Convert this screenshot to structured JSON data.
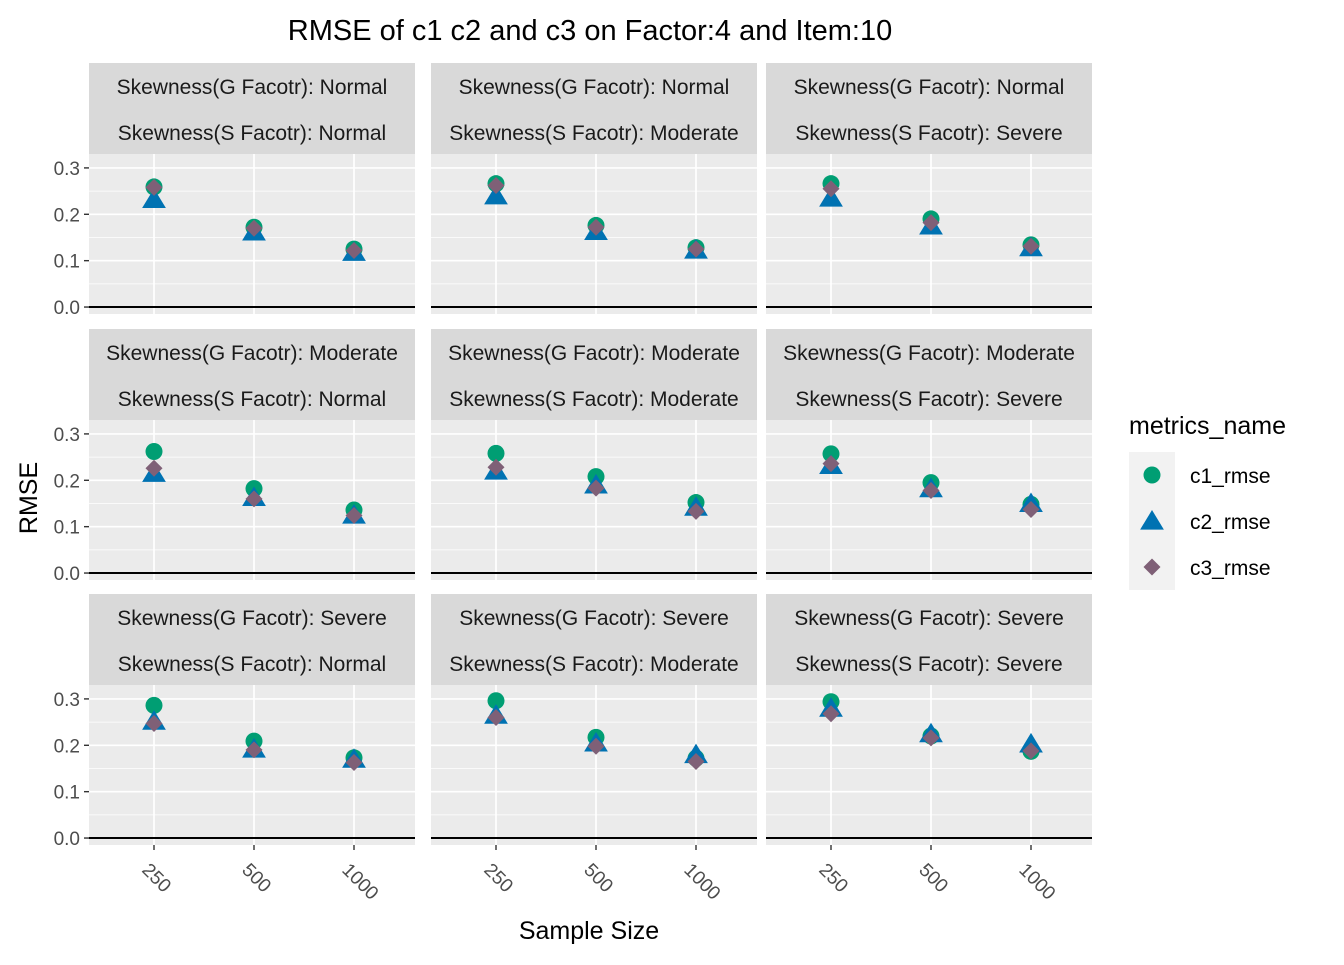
{
  "chart_data": {
    "type": "scatter",
    "title": "RMSE of c1 c2 and c3 on Factor:4 and Item:10",
    "xlabel": "Sample Size",
    "ylabel": "RMSE",
    "x_categories": [
      "250",
      "500",
      "1000"
    ],
    "y_ticks": [
      "0.0",
      "0.1",
      "0.2",
      "0.3"
    ],
    "ylim": [
      -0.015,
      0.33
    ],
    "grid": true,
    "legend": {
      "title": "metrics_name",
      "placement": "right",
      "entries": [
        {
          "name": "c1_rmse",
          "shape": "circle",
          "color": "#009E73"
        },
        {
          "name": "c2_rmse",
          "shape": "triangle",
          "color": "#0072B2"
        },
        {
          "name": "c3_rmse",
          "shape": "diamond",
          "color": "#7F6077"
        }
      ]
    },
    "panels": [
      {
        "strip_top": "Skewness(G Facotr): Normal",
        "strip_bottom": "Skewness(S Facotr): Normal",
        "series": [
          {
            "name": "c1_rmse",
            "values": [
              0.259,
              0.172,
              0.125
            ]
          },
          {
            "name": "c2_rmse",
            "values": [
              0.232,
              0.162,
              0.118
            ]
          },
          {
            "name": "c3_rmse",
            "values": [
              0.258,
              0.17,
              0.122
            ]
          }
        ]
      },
      {
        "strip_top": "Skewness(G Facotr): Normal",
        "strip_bottom": "Skewness(S Facotr): Moderate",
        "series": [
          {
            "name": "c1_rmse",
            "values": [
              0.266,
              0.176,
              0.128
            ]
          },
          {
            "name": "c2_rmse",
            "values": [
              0.24,
              0.163,
              0.123
            ]
          },
          {
            "name": "c3_rmse",
            "values": [
              0.262,
              0.172,
              0.125
            ]
          }
        ]
      },
      {
        "strip_top": "Skewness(G Facotr): Normal",
        "strip_bottom": "Skewness(S Facotr): Severe",
        "series": [
          {
            "name": "c1_rmse",
            "values": [
              0.266,
              0.19,
              0.134
            ]
          },
          {
            "name": "c2_rmse",
            "values": [
              0.235,
              0.175,
              0.128
            ]
          },
          {
            "name": "c3_rmse",
            "values": [
              0.255,
              0.182,
              0.131
            ]
          }
        ]
      },
      {
        "strip_top": "Skewness(G Facotr): Moderate",
        "strip_bottom": "Skewness(S Facotr): Normal",
        "series": [
          {
            "name": "c1_rmse",
            "values": [
              0.262,
              0.182,
              0.136
            ]
          },
          {
            "name": "c2_rmse",
            "values": [
              0.215,
              0.163,
              0.125
            ]
          },
          {
            "name": "c3_rmse",
            "values": [
              0.226,
              0.16,
              0.124
            ]
          }
        ]
      },
      {
        "strip_top": "Skewness(G Facotr): Moderate",
        "strip_bottom": "Skewness(S Facotr): Moderate",
        "series": [
          {
            "name": "c1_rmse",
            "values": [
              0.258,
              0.208,
              0.152
            ]
          },
          {
            "name": "c2_rmse",
            "values": [
              0.22,
              0.19,
              0.142
            ]
          },
          {
            "name": "c3_rmse",
            "values": [
              0.228,
              0.183,
              0.133
            ]
          }
        ]
      },
      {
        "strip_top": "Skewness(G Facotr): Moderate",
        "strip_bottom": "Skewness(S Facotr): Severe",
        "series": [
          {
            "name": "c1_rmse",
            "values": [
              0.257,
              0.195,
              0.148
            ]
          },
          {
            "name": "c2_rmse",
            "values": [
              0.232,
              0.182,
              0.15
            ]
          },
          {
            "name": "c3_rmse",
            "values": [
              0.236,
              0.178,
              0.137
            ]
          }
        ]
      },
      {
        "strip_top": "Skewness(G Facotr): Severe",
        "strip_bottom": "Skewness(S Facotr): Normal",
        "series": [
          {
            "name": "c1_rmse",
            "values": [
              0.286,
              0.209,
              0.173
            ]
          },
          {
            "name": "c2_rmse",
            "values": [
              0.252,
              0.192,
              0.17
            ]
          },
          {
            "name": "c3_rmse",
            "values": [
              0.247,
              0.19,
              0.163
            ]
          }
        ]
      },
      {
        "strip_top": "Skewness(G Facotr): Severe",
        "strip_bottom": "Skewness(S Facotr): Moderate",
        "series": [
          {
            "name": "c1_rmse",
            "values": [
              0.296,
              0.217,
              0.172
            ]
          },
          {
            "name": "c2_rmse",
            "values": [
              0.265,
              0.205,
              0.18
            ]
          },
          {
            "name": "c3_rmse",
            "values": [
              0.26,
              0.198,
              0.165
            ]
          }
        ]
      },
      {
        "strip_top": "Skewness(G Facotr): Severe",
        "strip_bottom": "Skewness(S Facotr): Severe",
        "series": [
          {
            "name": "c1_rmse",
            "values": [
              0.294,
              0.22,
              0.187
            ]
          },
          {
            "name": "c2_rmse",
            "values": [
              0.28,
              0.225,
              0.203
            ]
          },
          {
            "name": "c3_rmse",
            "values": [
              0.268,
              0.216,
              0.188
            ]
          }
        ]
      }
    ]
  }
}
